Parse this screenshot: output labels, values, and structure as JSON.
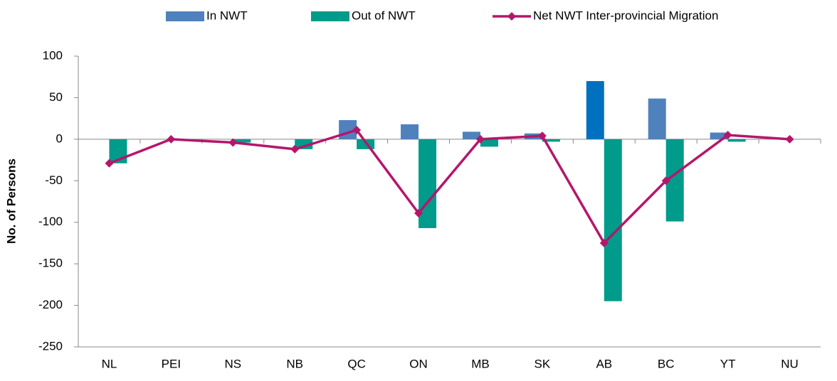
{
  "chart_data": {
    "type": "bar-line",
    "y_axis_label": "No. of Persons",
    "categories": [
      "NL",
      "PEI",
      "NS",
      "NB",
      "QC",
      "ON",
      "MB",
      "SK",
      "AB",
      "BC",
      "YT",
      "NU"
    ],
    "series": [
      {
        "name": "In NWT",
        "type": "bar",
        "color": "#4f81bd",
        "colors": [
          "#4f81bd",
          "#4f81bd",
          "#4f81bd",
          "#4f81bd",
          "#4f81bd",
          "#4f81bd",
          "#4f81bd",
          "#4f81bd",
          "#0070c0",
          "#4f81bd",
          "#4f81bd",
          "#4f81bd"
        ],
        "values": [
          0,
          0,
          0,
          0,
          23,
          18,
          9,
          7,
          70,
          49,
          8,
          0
        ]
      },
      {
        "name": "Out of NWT",
        "type": "bar",
        "color": "#009b8a",
        "values": [
          -29,
          0,
          -4,
          -12,
          -12,
          -107,
          -9,
          -3,
          -195,
          -99,
          -3,
          0
        ]
      },
      {
        "name": "Net NWT Inter-provincial Migration",
        "type": "line",
        "color": "#b5166b",
        "values": [
          -29,
          0,
          -4,
          -12,
          11,
          -89,
          0,
          4,
          -125,
          -50,
          5,
          0
        ]
      }
    ],
    "ylim": [
      -250,
      100
    ],
    "yticks": [
      -250,
      -200,
      -150,
      -100,
      -50,
      0,
      50,
      100
    ]
  }
}
